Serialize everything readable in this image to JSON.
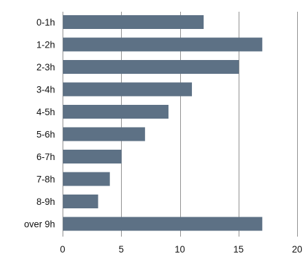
{
  "chart_data": {
    "type": "bar",
    "orientation": "horizontal",
    "categories": [
      "0-1h",
      "1-2h",
      "2-3h",
      "3-4h",
      "4-5h",
      "5-6h",
      "6-7h",
      "7-8h",
      "8-9h",
      "over 9h"
    ],
    "values": [
      12,
      17,
      15,
      11,
      9,
      7,
      5,
      4,
      3,
      17
    ],
    "xlim": [
      0,
      20
    ],
    "xticks": [
      0,
      5,
      10,
      15,
      20
    ],
    "grid": true,
    "legend": "none",
    "bar_color": "#5d7185"
  }
}
